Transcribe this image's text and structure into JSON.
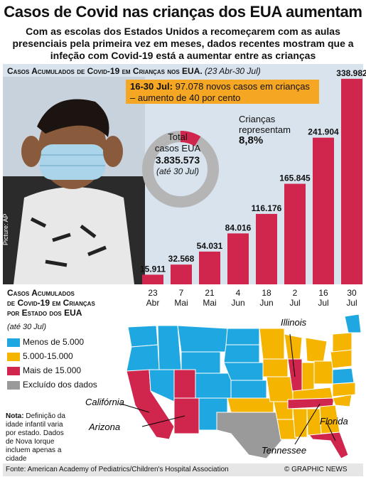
{
  "title": "Casos de Covid nas crianças dos EUA aumentam",
  "subtitle": "Com as escolas dos Estados Unidos a recomeçarem com as aulas presenciais pela primeira vez em meses, dados recentes mostram que a infeção com Covid-19 está a aumentar entre as crianças",
  "chart_title": "Casos Acumulados de Covid-19 em Crianças nos EUA.",
  "chart_period": "(23 Abr-30 Jul)",
  "annotation": {
    "bold": "16-30 Jul:",
    "text": " 97.078 novos casos em crianças – aumento de 40 por cento"
  },
  "donut": {
    "line1": "Total",
    "line2": "casos EUA",
    "value": "3.835.573",
    "note": "(até 30 Jul)",
    "children_line1": "Crianças",
    "children_line2": "representam",
    "children_pct": "8,8%",
    "children_fraction": 0.088
  },
  "photo_credit": "Picture: AP",
  "chart_data": {
    "type": "bar",
    "categories": [
      "23 Abr",
      "7 Mai",
      "21 Mai",
      "4 Jun",
      "18 Jun",
      "2 Jul",
      "16 Jul",
      "30 Jul"
    ],
    "values": [
      15911,
      32568,
      54031,
      84016,
      116176,
      165845,
      241904,
      338982
    ],
    "value_labels": [
      "15.911",
      "32.568",
      "54.031",
      "84.016",
      "116.176",
      "165.845",
      "241.904",
      "338.982"
    ],
    "xticks": [
      [
        "23",
        "Abr"
      ],
      [
        "7",
        "Mai"
      ],
      [
        "21",
        "Mai"
      ],
      [
        "4",
        "Jun"
      ],
      [
        "18",
        "Jun"
      ],
      [
        "2",
        "Jul"
      ],
      [
        "16",
        "Jul"
      ],
      [
        "30",
        "Jul"
      ]
    ],
    "ylim": [
      0,
      340000
    ],
    "color": "#d0264e"
  },
  "map_section": {
    "title_lines": [
      "Casos Acumulados",
      "de Covid-19 em Crianças",
      "por Estado dos EUA"
    ],
    "subtitle": "(até 30 Jul)",
    "legend": [
      {
        "label": "Menos de 5.000",
        "color": "#1ea7e1"
      },
      {
        "label": "5.000-15.000",
        "color": "#f5b400"
      },
      {
        "label": "Mais de 15.000",
        "color": "#d0264e"
      },
      {
        "label": "Excluído dos dados",
        "color": "#9a9a9a"
      }
    ],
    "state_labels": {
      "illinois": "Illinois",
      "california": "Califórnia",
      "arizona": "Arizona",
      "tennessee": "Tennessee",
      "florida": "Florida"
    }
  },
  "note": {
    "bold": "Nota:",
    "text": " Definição da idade infantil varia por estado. Dados de Nova Iorque incluem apenas a cidade"
  },
  "source": "Fonte: American Academy of Pediatrics/Children's Hospital Association",
  "credit": "© GRAPHIC NEWS"
}
